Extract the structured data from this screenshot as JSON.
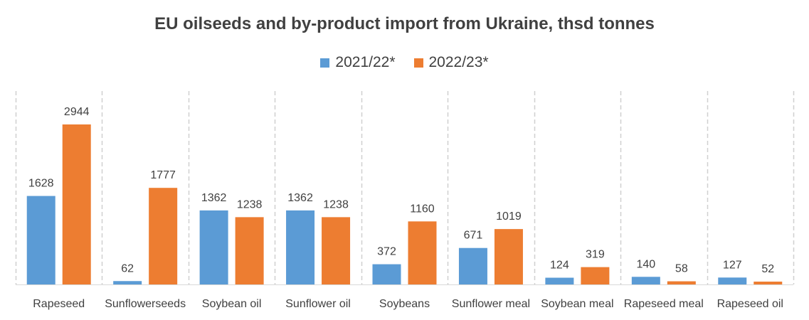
{
  "chart_data": {
    "type": "bar",
    "title": "EU oilseeds and by-product import from Ukraine, thsd tonnes",
    "categories": [
      "Rapeseed",
      "Sunflowerseeds",
      "Soybean oil",
      "Sunflower oil",
      "Soybeans",
      "Sunflower meal",
      "Soybean meal",
      "Rapeseed meal",
      "Rapeseed oil"
    ],
    "series": [
      {
        "name": "2021/22*",
        "color": "#5B9BD5",
        "values": [
          1628,
          62,
          1362,
          1362,
          372,
          671,
          124,
          140,
          127
        ]
      },
      {
        "name": "2022/23*",
        "color": "#ED7D31",
        "values": [
          2944,
          1777,
          1238,
          1238,
          1160,
          1019,
          319,
          58,
          52
        ]
      }
    ],
    "ylim": [
      0,
      2944
    ],
    "grid": "vertical dashed separators",
    "legend_position": "top-center"
  }
}
